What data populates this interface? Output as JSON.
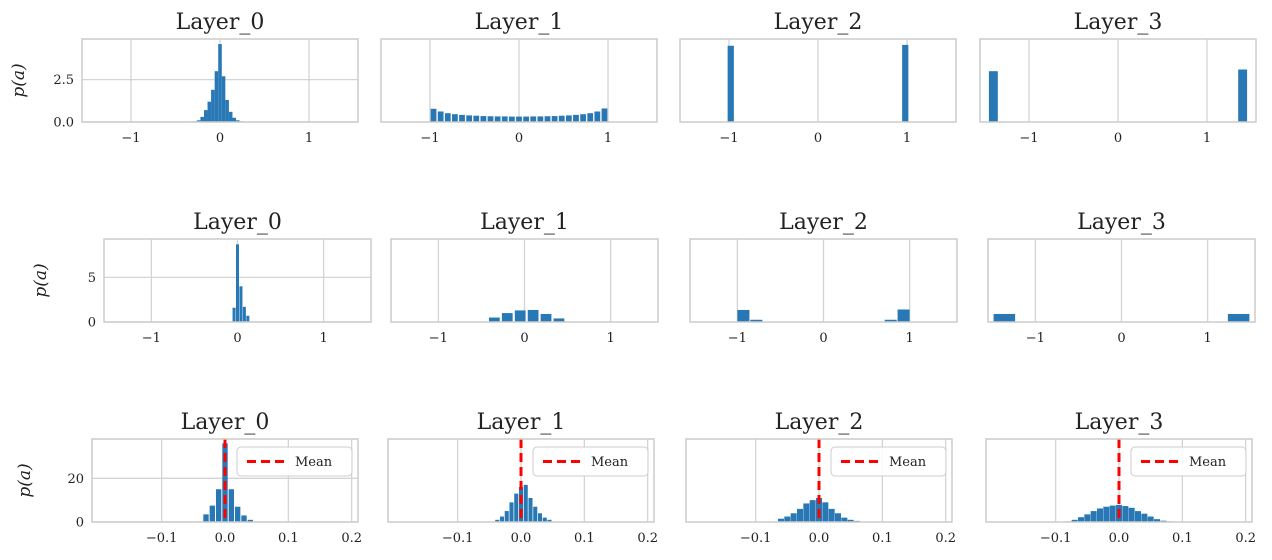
{
  "colors": {
    "bar": "#2878b5",
    "mean": "#ff0000",
    "grid": "#d4d4d4",
    "spine": "#cccccc",
    "text": "#222222"
  },
  "chart_data": [
    {
      "type": "bar",
      "title": "Layer_0",
      "ylabel": "p(a)",
      "xlim": [
        -1.55,
        1.55
      ],
      "ylim": [
        0,
        4.9
      ],
      "xticks": [
        -1,
        0,
        1
      ],
      "xtick_labels": [
        "−1",
        "0",
        "1"
      ],
      "yticks": [
        0,
        2.5
      ],
      "ytick_labels": [
        "0.0",
        "2.5"
      ],
      "bar_width": 0.04,
      "x": [
        -0.28,
        -0.24,
        -0.2,
        -0.16,
        -0.12,
        -0.08,
        -0.04,
        0.0,
        0.04,
        0.08,
        0.12,
        0.16,
        0.2,
        0.24,
        0.28
      ],
      "values": [
        0.04,
        0.1,
        0.3,
        0.7,
        1.2,
        1.9,
        3.0,
        4.6,
        2.7,
        1.3,
        0.6,
        0.25,
        0.1,
        0.04,
        0.02
      ],
      "grid": true,
      "legend": null
    },
    {
      "type": "bar",
      "title": "Layer_1",
      "ylabel": "",
      "xlim": [
        -1.55,
        1.55
      ],
      "ylim": [
        0,
        4.9
      ],
      "xticks": [
        -1,
        0,
        1
      ],
      "xtick_labels": [
        "−1",
        "0",
        "1"
      ],
      "yticks": [],
      "ytick_labels": [],
      "bar_width": 0.065,
      "x": [
        -0.96,
        -0.88,
        -0.8,
        -0.72,
        -0.64,
        -0.56,
        -0.48,
        -0.4,
        -0.32,
        -0.24,
        -0.16,
        -0.08,
        0.0,
        0.08,
        0.16,
        0.24,
        0.32,
        0.4,
        0.48,
        0.56,
        0.64,
        0.72,
        0.8,
        0.88,
        0.96
      ],
      "values": [
        0.78,
        0.62,
        0.52,
        0.46,
        0.42,
        0.39,
        0.37,
        0.35,
        0.34,
        0.33,
        0.33,
        0.32,
        0.32,
        0.32,
        0.33,
        0.33,
        0.34,
        0.35,
        0.37,
        0.39,
        0.42,
        0.46,
        0.52,
        0.62,
        0.8
      ],
      "grid": true,
      "legend": null
    },
    {
      "type": "bar",
      "title": "Layer_2",
      "ylabel": "",
      "xlim": [
        -1.55,
        1.55
      ],
      "ylim": [
        0,
        4.9
      ],
      "xticks": [
        -1,
        0,
        1
      ],
      "xtick_labels": [
        "−1",
        "0",
        "1"
      ],
      "yticks": [],
      "ytick_labels": [],
      "bar_width": 0.07,
      "x": [
        -0.98,
        0.98
      ],
      "values": [
        4.5,
        4.55
      ],
      "grid": true,
      "legend": null
    },
    {
      "type": "bar",
      "title": "Layer_3",
      "ylabel": "",
      "xlim": [
        -1.55,
        1.55
      ],
      "ylim": [
        0,
        4.9
      ],
      "xticks": [
        -1,
        0,
        1
      ],
      "xtick_labels": [
        "−1",
        "0",
        "1"
      ],
      "yticks": [],
      "ytick_labels": [],
      "bar_width": 0.1,
      "x": [
        -1.4,
        1.4
      ],
      "values": [
        3.0,
        3.1
      ],
      "grid": true,
      "legend": null
    },
    {
      "type": "bar",
      "title": "Layer_0",
      "ylabel": "p(a)",
      "xlim": [
        -1.55,
        1.55
      ],
      "ylim": [
        0,
        9.3
      ],
      "xticks": [
        -1,
        0,
        1
      ],
      "xtick_labels": [
        "−1",
        "0",
        "1"
      ],
      "yticks": [
        0,
        5
      ],
      "ytick_labels": [
        "0",
        "5"
      ],
      "bar_width": 0.035,
      "x": [
        -0.04,
        0.0,
        0.04,
        0.08,
        0.12
      ],
      "values": [
        1.6,
        8.7,
        4.0,
        1.7,
        0.7
      ],
      "grid": true,
      "legend": null
    },
    {
      "type": "bar",
      "title": "Layer_1",
      "ylabel": "",
      "xlim": [
        -1.55,
        1.55
      ],
      "ylim": [
        0,
        9.3
      ],
      "xticks": [
        -1,
        0,
        1
      ],
      "xtick_labels": [
        "−1",
        "0",
        "1"
      ],
      "yticks": [],
      "ytick_labels": [],
      "bar_width": 0.125,
      "x": [
        -0.35,
        -0.2,
        -0.05,
        0.1,
        0.25,
        0.4
      ],
      "values": [
        0.5,
        1.0,
        1.3,
        1.35,
        0.9,
        0.4
      ],
      "grid": true,
      "legend": null
    },
    {
      "type": "bar",
      "title": "Layer_2",
      "ylabel": "",
      "xlim": [
        -1.55,
        1.55
      ],
      "ylim": [
        0,
        9.3
      ],
      "xticks": [
        -1,
        0,
        1
      ],
      "xtick_labels": [
        "−1",
        "0",
        "1"
      ],
      "yticks": [],
      "ytick_labels": [],
      "bar_width": 0.14,
      "x": [
        -0.93,
        -0.78,
        0.78,
        0.93
      ],
      "values": [
        1.35,
        0.25,
        0.25,
        1.4
      ],
      "grid": true,
      "legend": null
    },
    {
      "type": "bar",
      "title": "Layer_3",
      "ylabel": "",
      "xlim": [
        -1.55,
        1.55
      ],
      "ylim": [
        0,
        9.3
      ],
      "xticks": [
        -1,
        0,
        1
      ],
      "xtick_labels": [
        "−1",
        "0",
        "1"
      ],
      "yticks": [],
      "ytick_labels": [],
      "bar_width": 0.25,
      "x": [
        -1.36,
        1.36
      ],
      "values": [
        0.9,
        0.9
      ],
      "grid": true,
      "legend": null
    },
    {
      "type": "bar",
      "title": "Layer_0",
      "ylabel": "p(a)",
      "xlim": [
        -0.21,
        0.21
      ],
      "ylim": [
        0,
        38
      ],
      "xticks": [
        -0.1,
        0.0,
        0.1,
        0.2
      ],
      "xtick_labels": [
        "−0.1",
        "0.0",
        "0.1",
        "0.2"
      ],
      "yticks": [
        0,
        20
      ],
      "ytick_labels": [
        "0",
        "20"
      ],
      "bar_width": 0.0085,
      "x": [
        -0.03,
        -0.02,
        -0.01,
        0.0,
        0.01,
        0.02,
        0.03,
        0.04
      ],
      "values": [
        3.5,
        7.5,
        15,
        36,
        15,
        7,
        3,
        1
      ],
      "mean": 0.0,
      "grid": true,
      "legend": {
        "label": "Mean",
        "loc": "upper right"
      }
    },
    {
      "type": "bar",
      "title": "Layer_1",
      "ylabel": "",
      "xlim": [
        -0.21,
        0.21
      ],
      "ylim": [
        0,
        38
      ],
      "xticks": [
        -0.1,
        0.0,
        0.1,
        0.2
      ],
      "xtick_labels": [
        "−0.1",
        "0.0",
        "0.1",
        "0.2"
      ],
      "yticks": [],
      "ytick_labels": [],
      "bar_width": 0.0064,
      "x": [
        -0.0375,
        -0.03,
        -0.0225,
        -0.015,
        -0.0075,
        0.0,
        0.0075,
        0.015,
        0.0225,
        0.03,
        0.0375,
        0.045
      ],
      "values": [
        1,
        2.5,
        5,
        9,
        13,
        16,
        17,
        11,
        7,
        4,
        2,
        1
      ],
      "mean": 0.0,
      "grid": true,
      "legend": {
        "label": "Mean",
        "loc": "upper right"
      }
    },
    {
      "type": "bar",
      "title": "Layer_2",
      "ylabel": "",
      "xlim": [
        -0.21,
        0.21
      ],
      "ylim": [
        0,
        38
      ],
      "xticks": [
        -0.1,
        0.0,
        0.1,
        0.2
      ],
      "xtick_labels": [
        "−0.1",
        "0.0",
        "0.1",
        "0.2"
      ],
      "yticks": [],
      "ytick_labels": [],
      "bar_width": 0.0095,
      "x": [
        -0.06,
        -0.05,
        -0.04,
        -0.03,
        -0.02,
        -0.01,
        0.0,
        0.01,
        0.02,
        0.03,
        0.04,
        0.05,
        0.06
      ],
      "values": [
        1.5,
        2.5,
        4,
        6,
        8.5,
        10,
        11,
        9,
        6,
        4,
        2,
        1,
        0.5
      ],
      "mean": 0.0,
      "grid": true,
      "legend": {
        "label": "Mean",
        "loc": "upper right"
      }
    },
    {
      "type": "bar",
      "title": "Layer_3",
      "ylabel": "",
      "xlim": [
        -0.21,
        0.21
      ],
      "ylim": [
        0,
        38
      ],
      "xticks": [
        -0.1,
        0.0,
        0.1,
        0.2
      ],
      "xtick_labels": [
        "−0.1",
        "0.0",
        "0.1",
        "0.2"
      ],
      "yticks": [],
      "ytick_labels": [],
      "bar_width": 0.0095,
      "x": [
        -0.08,
        -0.07,
        -0.06,
        -0.05,
        -0.04,
        -0.03,
        -0.02,
        -0.01,
        0.0,
        0.01,
        0.02,
        0.03,
        0.04,
        0.05,
        0.06,
        0.07,
        0.08
      ],
      "values": [
        0.3,
        1,
        2.2,
        3.5,
        5,
        6.2,
        7,
        7.5,
        7.8,
        7.3,
        6.5,
        5,
        3.8,
        2.5,
        1.3,
        0.6,
        0.3
      ],
      "mean": 0.0,
      "grid": true,
      "legend": {
        "label": "Mean",
        "loc": "upper right"
      }
    }
  ]
}
